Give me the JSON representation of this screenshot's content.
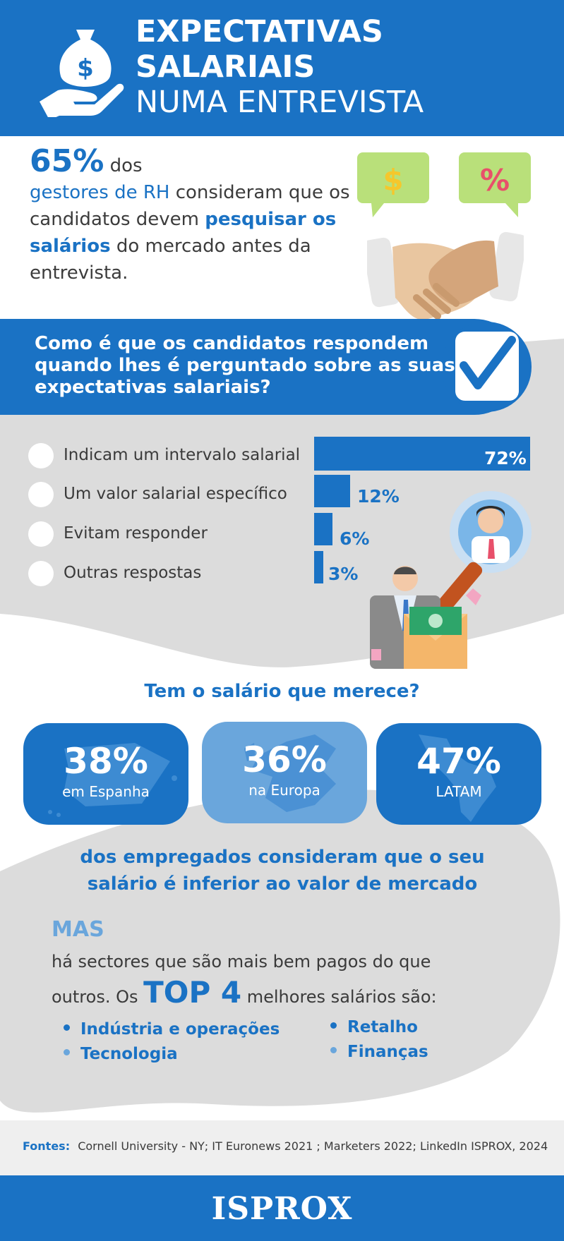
{
  "header": {
    "title_line1": "EXPECTATIVAS",
    "title_line2": "SALARIAIS",
    "title_line3": "NUMA ENTREVISTA"
  },
  "intro": {
    "stat": "65%",
    "t1": "dos",
    "t2": "gestores de RH",
    "t3": " consideram que os candidatos devem ",
    "t4": "pesquisar os salários",
    "t5": " do mercado antes da entrevista.",
    "dollar_symbol": "$",
    "percent_symbol": "%"
  },
  "question": "Como é que os candidatos respondem quando lhes é perguntado sobre as suas expectativas salariais?",
  "responses": [
    {
      "label": "Indicam um intervalo salarial",
      "value": "72%",
      "pct": 72
    },
    {
      "label": "Um valor salarial específico",
      "value": "12%",
      "pct": 12
    },
    {
      "label": "Evitam responder",
      "value": "6%",
      "pct": 6
    },
    {
      "label": "Outras respostas",
      "value": "3%",
      "pct": 3
    }
  ],
  "merece_title": "Tem o salário que merece?",
  "regions": [
    {
      "pct": "38%",
      "label": "em Espanha"
    },
    {
      "pct": "36%",
      "label": "na Europa"
    },
    {
      "pct": "47%",
      "label": "LATAM"
    }
  ],
  "conclusion": "dos empregados consideram que o seu salário é inferior ao valor de mercado",
  "mas": {
    "title": "MAS",
    "text1": "há sectores que são mais bem pagos do que outros. Os ",
    "top4": "TOP 4",
    "text2": " melhores salários são:"
  },
  "sectors": [
    "Indústria e operações",
    "Tecnologia",
    "Retalho",
    "Finanças"
  ],
  "sources": {
    "label": "Fontes:",
    "text": "Cornell University - NY; IT Euronews 2021 ; Marketers 2022;  LinkedIn ISPROX, 2024"
  },
  "brand": "ISPROX",
  "colors": {
    "primary": "#1a72c4",
    "light_blue": "#6aa6dc",
    "grey_background": "#dcdcdc",
    "bubble_green": "#b9e07a"
  }
}
